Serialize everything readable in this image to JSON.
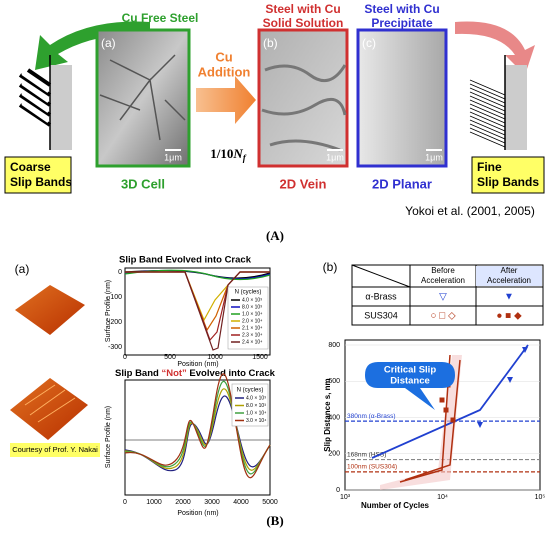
{
  "panel_a": {
    "label": "(A)",
    "credit": "Yokoi et al. (2001, 2005)",
    "left_box": [
      "Coarse",
      "Slip Bands"
    ],
    "right_box": [
      "Fine",
      "Slip Bands"
    ],
    "arrow_text": [
      "Cu",
      "Addition"
    ],
    "cycles": {
      "prefix": "1/10",
      "var": "N",
      "sub": "f"
    },
    "images": [
      {
        "tag": "(a)",
        "heading": [
          "Cu Free Steel"
        ],
        "caption": "3D Cell",
        "scale": "1μm"
      },
      {
        "tag": "(b)",
        "heading": [
          "Steel with Cu",
          "Solid Solution"
        ],
        "caption": "2D Vein",
        "scale": "1μm"
      },
      {
        "tag": "(c)",
        "heading": [
          "Steel with Cu",
          "Precipitate"
        ],
        "caption": "2D Planar",
        "scale": "1μm"
      }
    ]
  },
  "panel_b": {
    "label": "(B)",
    "left_tag": "(a)",
    "right_tag": "(b)",
    "courtesy": "Courtesy of Prof. Y. Nakai",
    "top_chart": {
      "title": "Slip Band Evolved into Crack",
      "xlabel": "Position (nm)",
      "ylabel": "Surface Profile (nm)",
      "xticks": [
        "0",
        "500",
        "1000",
        "1500"
      ],
      "yticks": [
        "0",
        "-100",
        "-200",
        "-300"
      ],
      "legend_title": "N (cycles)",
      "legend": [
        "4.0 × 10³",
        "8.0 × 10³",
        "1.0 × 10⁴",
        "2.0 × 10⁴",
        "2.1 × 10⁴",
        "2.3 × 10⁴",
        "2.4 × 10⁴"
      ]
    },
    "bottom_chart": {
      "title": [
        "Slip Band ",
        "“Not”",
        " Evolved into Crack"
      ],
      "xlabel": "Position (nm)",
      "ylabel": "Surface Profile (nm)",
      "xticks": [
        "0",
        "1000",
        "2000",
        "3000",
        "4000",
        "5000"
      ],
      "legend_title": "N (cycles)",
      "legend": [
        "4.0 × 10³",
        "8.0 × 10³",
        "1.0 × 10⁴",
        "3.0 × 10⁴"
      ]
    },
    "table": {
      "headers": [
        [
          "Before",
          "Acceleration"
        ],
        [
          "After",
          "Acceleration"
        ]
      ],
      "rows": [
        [
          "α-Brass",
          "▽",
          "▼"
        ],
        [
          "SUS304",
          "○ □ ◇",
          "● ■ ◆"
        ]
      ]
    },
    "slip_chart": {
      "ylabel": "Slip Distance  s,  nm",
      "xlabel": "Number of Cycles",
      "yticks": [
        "0",
        "200",
        "400",
        "600",
        "800"
      ],
      "xticks": [
        "10³",
        "10⁴",
        "10⁵"
      ],
      "callout": [
        "Critical Slip",
        "Distance"
      ],
      "lines": [
        "380nm (α-Brass)",
        "168nm (HSS)",
        "100nm (SUS304)"
      ]
    }
  }
}
